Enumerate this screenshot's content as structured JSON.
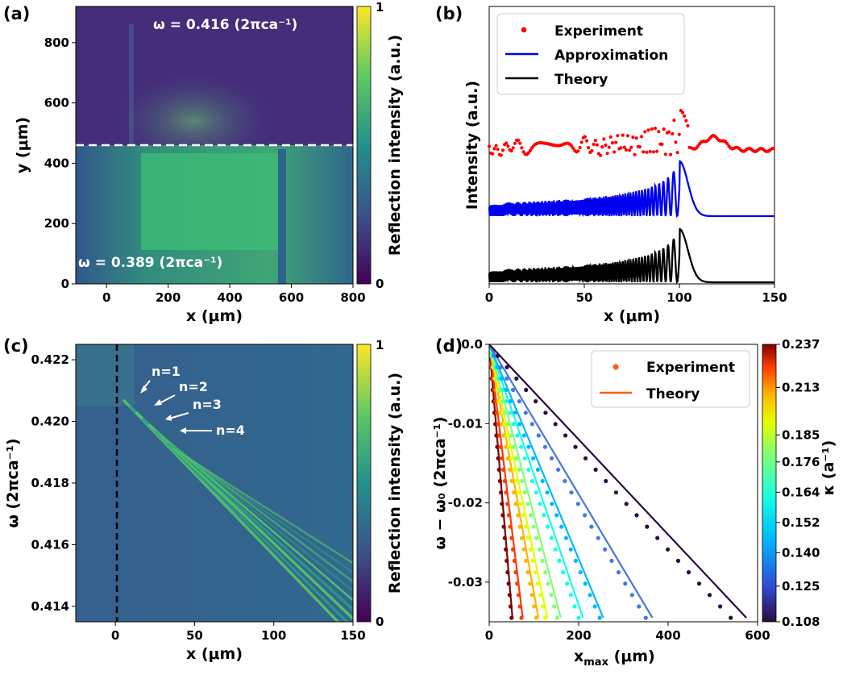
{
  "panel_labels": [
    "(a)",
    "(b)",
    "(c)",
    "(d)"
  ],
  "colors": {
    "viridis_dark": "#440154",
    "viridis_mid": "#21918c",
    "viridis_light": "#5ec962",
    "viridis_yellow": "#fde725",
    "experiment_b": "#ff0000",
    "approx_b": "#0000ee",
    "theory_b": "#000000",
    "legend_d": "#ff5a14"
  },
  "chart_data": [
    {
      "panel": "(a)",
      "type": "heatmap",
      "xlabel": "x (μm)",
      "ylabel": "y (μm)",
      "xlim": [
        -100,
        800
      ],
      "ylim": [
        0,
        920
      ],
      "xticks": [
        "0",
        "200",
        "400",
        "600",
        "800"
      ],
      "yticks": [
        "0",
        "200",
        "400",
        "600",
        "800"
      ],
      "colorbar_label": "Reflection intensity (a.u.)",
      "colorbar_ticks": [
        "0",
        "1"
      ],
      "dashed_line_y": 460,
      "annotation_top": "ω = 0.416 (2πca⁻¹)",
      "annotation_bottom": "ω = 0.389 (2πca⁻¹)"
    },
    {
      "panel": "(b)",
      "type": "line",
      "xlabel": "x (μm)",
      "ylabel": "Intensity (a.u.)",
      "xlim": [
        0,
        150
      ],
      "xticks": [
        "0",
        "50",
        "100",
        "150"
      ],
      "legend": [
        "Experiment",
        "Approximation",
        "Theory"
      ],
      "legend_position": "top-left",
      "peak_x": 100
    },
    {
      "panel": "(c)",
      "type": "heatmap",
      "xlabel": "x (μm)",
      "ylabel": "ω (2πca⁻¹)",
      "xlim": [
        -25,
        150
      ],
      "ylim": [
        0.4135,
        0.4225
      ],
      "xticks": [
        "0",
        "50",
        "100",
        "150"
      ],
      "yticks": [
        "0.414",
        "0.416",
        "0.418",
        "0.420",
        "0.422"
      ],
      "colorbar_label": "Reflection intensity (a.u.)",
      "colorbar_ticks": [
        "0",
        "1"
      ],
      "dashed_line_x": 0,
      "annotations": [
        "n=1",
        "n=2",
        "n=3",
        "n=4"
      ]
    },
    {
      "panel": "(d)",
      "type": "scatter",
      "xlabel": "x",
      "xlabel_sub": "max",
      "xlabel_unit": " (μm)",
      "ylabel": "ω − ω₀ (2πca⁻¹)",
      "xlim": [
        0,
        600
      ],
      "ylim": [
        -0.035,
        0
      ],
      "xticks": [
        "0",
        "200",
        "400",
        "600"
      ],
      "yticks": [
        "0.0",
        "-0.01",
        "-0.02",
        "-0.03"
      ],
      "legend": [
        "Experiment",
        "Theory"
      ],
      "legend_position": "top-right",
      "colorbar_label": "κ (a⁻¹)",
      "colorbar_ticks": [
        "0.237",
        "0.213",
        "0.185",
        "0.176",
        "0.164",
        "0.152",
        "0.140",
        "0.125",
        "0.108"
      ],
      "series": [
        {
          "kappa": 0.237,
          "color": "#7f0000",
          "x_end_theory": 52,
          "x_end_exp": 50
        },
        {
          "kappa": 0.213,
          "color": "#ff3b00",
          "x_end_theory": 75,
          "x_end_exp": 72
        },
        {
          "kappa": 0.185,
          "color": "#ffb400",
          "x_end_theory": 110,
          "x_end_exp": 105
        },
        {
          "kappa": 0.176,
          "color": "#e3ff00",
          "x_end_theory": 130,
          "x_end_exp": 125
        },
        {
          "kappa": 0.164,
          "color": "#80ff76",
          "x_end_theory": 160,
          "x_end_exp": 152
        },
        {
          "kappa": 0.152,
          "color": "#15ffe1",
          "x_end_theory": 210,
          "x_end_exp": 200
        },
        {
          "kappa": 0.14,
          "color": "#00b8ff",
          "x_end_theory": 255,
          "x_end_exp": 247
        },
        {
          "kappa": 0.125,
          "color": "#4776e1",
          "x_end_theory": 365,
          "x_end_exp": 350
        },
        {
          "kappa": 0.108,
          "color": "#2a0a3e",
          "x_end_theory": 575,
          "x_end_exp": 540
        }
      ]
    }
  ]
}
